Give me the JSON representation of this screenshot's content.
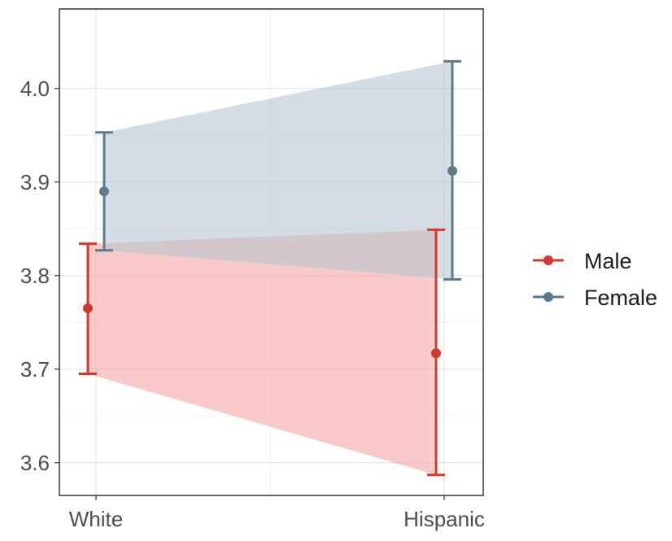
{
  "chart_data": {
    "type": "line",
    "title": "",
    "xlabel": "",
    "ylabel": "",
    "categories": [
      "White",
      "Hispanic"
    ],
    "ylim": [
      3.565,
      4.085
    ],
    "yticks": [
      3.6,
      3.7,
      3.8,
      3.9,
      4.0
    ],
    "ytick_labels": [
      "3.6",
      "3.7",
      "3.8",
      "3.9",
      "4.0"
    ],
    "grid": true,
    "legend_position": "right",
    "series": [
      {
        "name": "Male",
        "color": "#d03a2c",
        "ribbon_color": "#f4a9a6",
        "values": [
          3.765,
          3.717
        ],
        "lower": [
          3.695,
          3.587
        ],
        "upper": [
          3.834,
          3.849
        ]
      },
      {
        "name": "Female",
        "color": "#5c7a89",
        "ribbon_color": "#b8c7d0",
        "values": [
          3.89,
          3.912
        ],
        "lower": [
          3.827,
          3.796
        ],
        "upper": [
          3.953,
          4.029
        ]
      }
    ]
  }
}
